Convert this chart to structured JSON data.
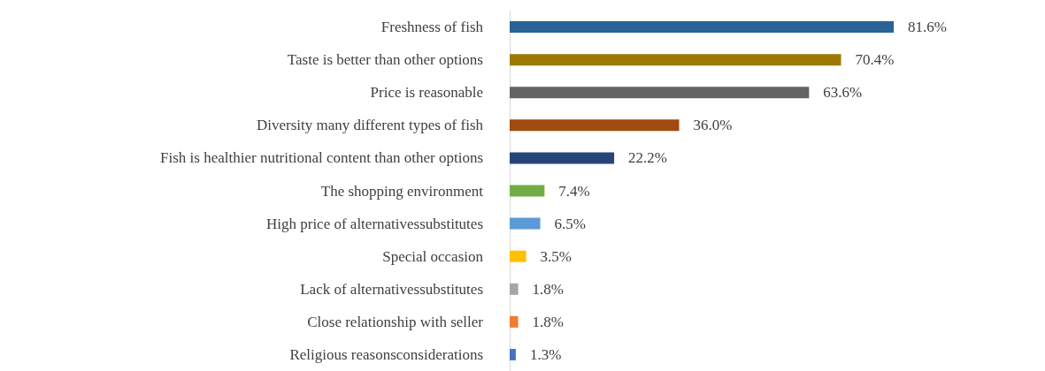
{
  "chart_data": {
    "type": "bar",
    "orientation": "horizontal",
    "categories": [
      "Freshness of fish",
      "Taste is better than other options",
      "Price is reasonable",
      "Diversity many different types of fish",
      "Fish is healthier nutritional content than other options",
      "The shopping environment",
      "High price of alternativessubstitutes",
      "Special occasion",
      "Lack of alternativessubstitutes",
      "Close relationship with seller",
      "Religious reasonsconsiderations"
    ],
    "values": [
      81.6,
      70.4,
      63.6,
      36.0,
      22.2,
      7.4,
      6.5,
      3.5,
      1.8,
      1.8,
      1.3
    ],
    "value_labels": [
      "81.6%",
      "70.4%",
      "63.6%",
      "36.0%",
      "22.2%",
      "7.4%",
      "6.5%",
      "3.5%",
      "1.8%",
      "1.8%",
      "1.3%"
    ],
    "colors": [
      "#2a6496",
      "#9c7a00",
      "#636363",
      "#a04a0f",
      "#264478",
      "#70ad47",
      "#5b9bd5",
      "#ffc000",
      "#a5a5a5",
      "#ed7d31",
      "#4472c4"
    ],
    "grid": false
  }
}
